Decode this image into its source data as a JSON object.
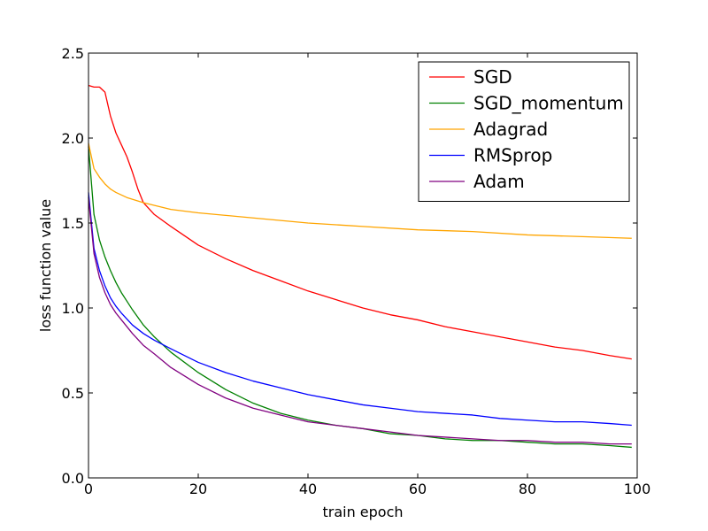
{
  "chart_data": {
    "type": "line",
    "xlabel": "train epoch",
    "ylabel": "loss function value",
    "xlim": [
      0,
      100
    ],
    "ylim": [
      0,
      2.5
    ],
    "xticks": [
      0,
      20,
      40,
      60,
      80,
      100
    ],
    "yticks": [
      0,
      0.5,
      1,
      1.5,
      2,
      2.5
    ],
    "xtick_labels": [
      "0",
      "20",
      "40",
      "60",
      "80",
      "100"
    ],
    "ytick_labels": [
      "0.0",
      "0.5",
      "1.0",
      "1.5",
      "2.0",
      "2.5"
    ],
    "grid": false,
    "legend_position": "top-right",
    "series": [
      {
        "name": "SGD",
        "color": "#ff0000",
        "x": [
          0,
          1,
          2,
          3,
          4,
          5,
          6,
          7,
          8,
          9,
          10,
          12,
          15,
          20,
          25,
          30,
          35,
          40,
          45,
          50,
          55,
          60,
          65,
          70,
          75,
          80,
          85,
          90,
          95,
          99
        ],
        "y": [
          2.31,
          2.3,
          2.3,
          2.27,
          2.13,
          2.03,
          1.96,
          1.89,
          1.8,
          1.7,
          1.62,
          1.55,
          1.48,
          1.37,
          1.29,
          1.22,
          1.16,
          1.1,
          1.05,
          1.0,
          0.96,
          0.93,
          0.89,
          0.86,
          0.83,
          0.8,
          0.77,
          0.75,
          0.72,
          0.7
        ]
      },
      {
        "name": "SGD_momentum",
        "color": "#008000",
        "x": [
          0,
          1,
          2,
          3,
          4,
          5,
          6,
          7,
          8,
          10,
          12,
          15,
          20,
          25,
          30,
          35,
          40,
          45,
          50,
          55,
          60,
          65,
          70,
          75,
          80,
          85,
          90,
          95,
          99
        ],
        "y": [
          1.95,
          1.55,
          1.4,
          1.3,
          1.22,
          1.15,
          1.09,
          1.04,
          0.99,
          0.9,
          0.83,
          0.74,
          0.62,
          0.52,
          0.44,
          0.38,
          0.34,
          0.31,
          0.29,
          0.26,
          0.25,
          0.23,
          0.22,
          0.22,
          0.21,
          0.2,
          0.2,
          0.19,
          0.18
        ]
      },
      {
        "name": "Adagrad",
        "color": "#ffa500",
        "x": [
          0,
          1,
          2,
          3,
          4,
          5,
          7,
          10,
          15,
          20,
          30,
          40,
          50,
          60,
          70,
          80,
          90,
          99
        ],
        "y": [
          1.97,
          1.82,
          1.77,
          1.73,
          1.7,
          1.68,
          1.65,
          1.62,
          1.58,
          1.56,
          1.53,
          1.5,
          1.48,
          1.46,
          1.45,
          1.43,
          1.42,
          1.41
        ]
      },
      {
        "name": "RMSprop",
        "color": "#0000ff",
        "x": [
          0,
          1,
          2,
          3,
          4,
          5,
          6,
          8,
          10,
          12,
          15,
          20,
          25,
          30,
          35,
          40,
          45,
          50,
          55,
          60,
          65,
          70,
          75,
          80,
          85,
          90,
          95,
          99
        ],
        "y": [
          1.68,
          1.35,
          1.22,
          1.13,
          1.06,
          1.01,
          0.97,
          0.9,
          0.85,
          0.81,
          0.76,
          0.68,
          0.62,
          0.57,
          0.53,
          0.49,
          0.46,
          0.43,
          0.41,
          0.39,
          0.38,
          0.37,
          0.35,
          0.34,
          0.33,
          0.33,
          0.32,
          0.31
        ]
      },
      {
        "name": "Adam",
        "color": "#800080",
        "x": [
          0,
          1,
          2,
          3,
          4,
          5,
          6,
          8,
          10,
          12,
          15,
          20,
          25,
          30,
          35,
          40,
          45,
          50,
          55,
          60,
          65,
          70,
          75,
          80,
          85,
          90,
          95,
          99
        ],
        "y": [
          1.65,
          1.32,
          1.18,
          1.09,
          1.02,
          0.97,
          0.93,
          0.85,
          0.78,
          0.73,
          0.65,
          0.55,
          0.47,
          0.41,
          0.37,
          0.33,
          0.31,
          0.29,
          0.27,
          0.25,
          0.24,
          0.23,
          0.22,
          0.22,
          0.21,
          0.21,
          0.2,
          0.2
        ]
      }
    ]
  }
}
